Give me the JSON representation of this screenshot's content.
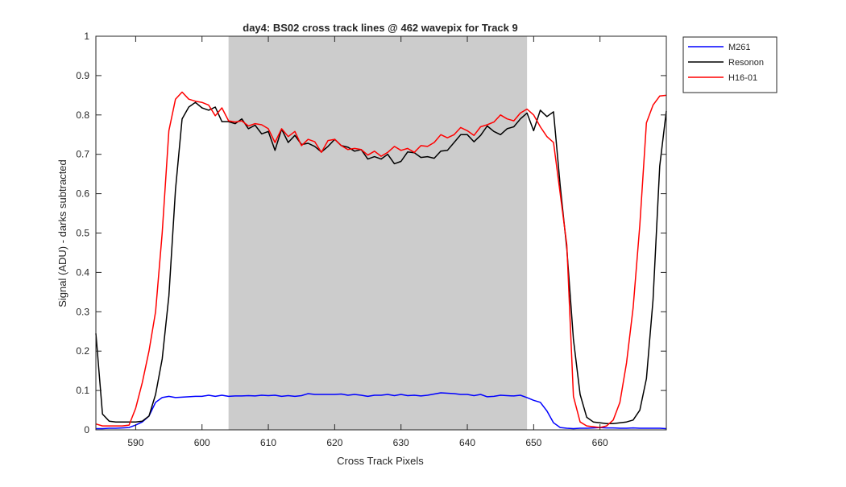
{
  "chart_data": {
    "type": "line",
    "title": "day4: BS02  cross track lines @ 462 wavepix for Track 9",
    "xlabel": "Cross Track Pixels",
    "ylabel": "Signal (ADU) - darks subtracted",
    "xlim": [
      584,
      670
    ],
    "ylim": [
      0,
      1
    ],
    "xticks": [
      590,
      600,
      610,
      620,
      630,
      640,
      650,
      660
    ],
    "yticks": [
      0,
      0.1,
      0.2,
      0.3,
      0.4,
      0.5,
      0.6,
      0.7,
      0.8,
      0.9,
      1
    ],
    "ytick_labels": [
      "0",
      "0.1",
      "0.2",
      "0.3",
      "0.4",
      "0.5",
      "0.6",
      "0.7",
      "0.8",
      "0.9",
      "1"
    ],
    "shaded_region": {
      "x0": 604,
      "x1": 649,
      "color": "#cccccc"
    },
    "legend_position": "outside-top-right",
    "grid": false,
    "series": [
      {
        "name": "M261",
        "color": "#0000ff",
        "x": [
          584,
          585,
          586,
          587,
          588,
          589,
          590,
          591,
          592,
          593,
          594,
          595,
          596,
          597,
          598,
          599,
          600,
          601,
          602,
          603,
          604,
          605,
          606,
          607,
          608,
          609,
          610,
          611,
          612,
          613,
          614,
          615,
          616,
          617,
          618,
          619,
          620,
          621,
          622,
          623,
          624,
          625,
          626,
          627,
          628,
          629,
          630,
          631,
          632,
          633,
          634,
          635,
          636,
          637,
          638,
          639,
          640,
          641,
          642,
          643,
          644,
          645,
          646,
          647,
          648,
          649,
          650,
          651,
          652,
          653,
          654,
          655,
          656,
          657,
          658,
          659,
          660,
          661,
          662,
          663,
          664,
          665,
          666,
          667,
          668,
          669,
          670
        ],
        "y": [
          0.003,
          0.003,
          0.004,
          0.004,
          0.005,
          0.006,
          0.012,
          0.02,
          0.035,
          0.07,
          0.082,
          0.085,
          0.082,
          0.083,
          0.084,
          0.085,
          0.085,
          0.088,
          0.085,
          0.088,
          0.085,
          0.086,
          0.086,
          0.087,
          0.086,
          0.088,
          0.087,
          0.088,
          0.085,
          0.087,
          0.085,
          0.087,
          0.092,
          0.09,
          0.09,
          0.09,
          0.09,
          0.091,
          0.088,
          0.09,
          0.088,
          0.085,
          0.088,
          0.088,
          0.09,
          0.087,
          0.09,
          0.087,
          0.088,
          0.086,
          0.088,
          0.091,
          0.094,
          0.093,
          0.092,
          0.09,
          0.09,
          0.087,
          0.09,
          0.084,
          0.085,
          0.088,
          0.087,
          0.086,
          0.088,
          0.082,
          0.075,
          0.07,
          0.048,
          0.018,
          0.006,
          0.004,
          0.003,
          0.004,
          0.004,
          0.005,
          0.006,
          0.005,
          0.005,
          0.004,
          0.004,
          0.005,
          0.004,
          0.004,
          0.004,
          0.004,
          0.003
        ]
      },
      {
        "name": "Resonon",
        "color": "#000000",
        "x": [
          584,
          585,
          586,
          587,
          588,
          589,
          590,
          591,
          592,
          593,
          594,
          595,
          596,
          597,
          598,
          599,
          600,
          601,
          602,
          603,
          604,
          605,
          606,
          607,
          608,
          609,
          610,
          611,
          612,
          613,
          614,
          615,
          616,
          617,
          618,
          619,
          620,
          621,
          622,
          623,
          624,
          625,
          626,
          627,
          628,
          629,
          630,
          631,
          632,
          633,
          634,
          635,
          636,
          637,
          638,
          639,
          640,
          641,
          642,
          643,
          644,
          645,
          646,
          647,
          648,
          649,
          650,
          651,
          652,
          653,
          654,
          655,
          656,
          657,
          658,
          659,
          660,
          661,
          662,
          663,
          664,
          665,
          666,
          667,
          668,
          669,
          670
        ],
        "y": [
          0.245,
          0.04,
          0.022,
          0.02,
          0.02,
          0.02,
          0.02,
          0.022,
          0.035,
          0.09,
          0.18,
          0.34,
          0.61,
          0.79,
          0.82,
          0.832,
          0.818,
          0.812,
          0.82,
          0.783,
          0.783,
          0.778,
          0.79,
          0.765,
          0.774,
          0.752,
          0.758,
          0.71,
          0.764,
          0.73,
          0.748,
          0.725,
          0.728,
          0.72,
          0.706,
          0.72,
          0.738,
          0.722,
          0.718,
          0.708,
          0.712,
          0.688,
          0.694,
          0.688,
          0.7,
          0.676,
          0.682,
          0.706,
          0.704,
          0.692,
          0.694,
          0.69,
          0.708,
          0.71,
          0.73,
          0.75,
          0.75,
          0.732,
          0.748,
          0.772,
          0.758,
          0.75,
          0.765,
          0.77,
          0.79,
          0.805,
          0.76,
          0.812,
          0.796,
          0.808,
          0.62,
          0.46,
          0.23,
          0.09,
          0.032,
          0.02,
          0.018,
          0.016,
          0.016,
          0.018,
          0.02,
          0.025,
          0.05,
          0.13,
          0.33,
          0.67,
          0.81
        ]
      },
      {
        "name": "H16-01",
        "color": "#ff0000",
        "x": [
          584,
          585,
          586,
          587,
          588,
          589,
          590,
          591,
          592,
          593,
          594,
          595,
          596,
          597,
          598,
          599,
          600,
          601,
          602,
          603,
          604,
          605,
          606,
          607,
          608,
          609,
          610,
          611,
          612,
          613,
          614,
          615,
          616,
          617,
          618,
          619,
          620,
          621,
          622,
          623,
          624,
          625,
          626,
          627,
          628,
          629,
          630,
          631,
          632,
          633,
          634,
          635,
          636,
          637,
          638,
          639,
          640,
          641,
          642,
          643,
          644,
          645,
          646,
          647,
          648,
          649,
          650,
          651,
          652,
          653,
          654,
          655,
          656,
          657,
          658,
          659,
          660,
          661,
          662,
          663,
          664,
          665,
          666,
          667,
          668,
          669,
          670
        ],
        "y": [
          0.015,
          0.01,
          0.01,
          0.01,
          0.01,
          0.012,
          0.055,
          0.12,
          0.2,
          0.3,
          0.5,
          0.76,
          0.84,
          0.858,
          0.84,
          0.835,
          0.832,
          0.825,
          0.798,
          0.818,
          0.785,
          0.782,
          0.785,
          0.772,
          0.778,
          0.775,
          0.765,
          0.73,
          0.765,
          0.745,
          0.758,
          0.722,
          0.738,
          0.732,
          0.705,
          0.735,
          0.738,
          0.722,
          0.712,
          0.715,
          0.712,
          0.698,
          0.708,
          0.695,
          0.705,
          0.72,
          0.71,
          0.715,
          0.705,
          0.722,
          0.72,
          0.73,
          0.75,
          0.742,
          0.75,
          0.768,
          0.76,
          0.748,
          0.77,
          0.775,
          0.782,
          0.8,
          0.79,
          0.785,
          0.805,
          0.815,
          0.8,
          0.77,
          0.745,
          0.73,
          0.6,
          0.47,
          0.085,
          0.02,
          0.01,
          0.008,
          0.006,
          0.01,
          0.025,
          0.07,
          0.17,
          0.31,
          0.52,
          0.78,
          0.825,
          0.848,
          0.85
        ]
      }
    ]
  }
}
